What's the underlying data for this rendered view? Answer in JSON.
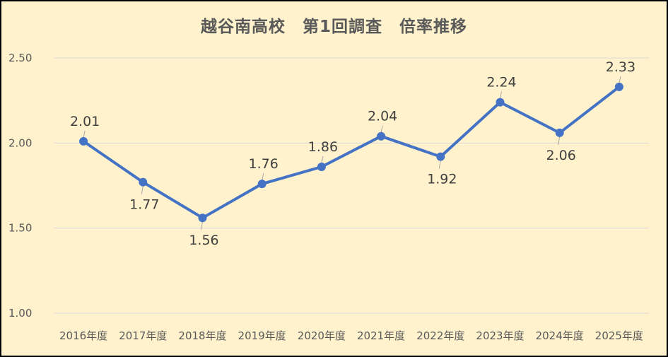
{
  "chart_data": {
    "type": "line",
    "title": "越谷南高校　第1回調査　倍率推移",
    "categories": [
      "2016年度",
      "2017年度",
      "2018年度",
      "2019年度",
      "2020年度",
      "2021年度",
      "2022年度",
      "2023年度",
      "2024年度",
      "2025年度"
    ],
    "series": [
      {
        "values": [
          2.01,
          1.77,
          1.56,
          1.76,
          1.86,
          2.04,
          1.92,
          2.24,
          2.06,
          2.33
        ]
      }
    ],
    "data_labels": [
      "2.01",
      "1.77",
      "1.56",
      "1.76",
      "1.86",
      "2.04",
      "1.92",
      "2.24",
      "2.06",
      "2.33"
    ],
    "y_ticks": [
      "1.00",
      "1.50",
      "2.00",
      "2.50"
    ],
    "ylim": [
      1.0,
      2.5
    ],
    "grid": true,
    "legend": "none",
    "line_color": "#4472c4",
    "background_color": "#fff2cc"
  }
}
